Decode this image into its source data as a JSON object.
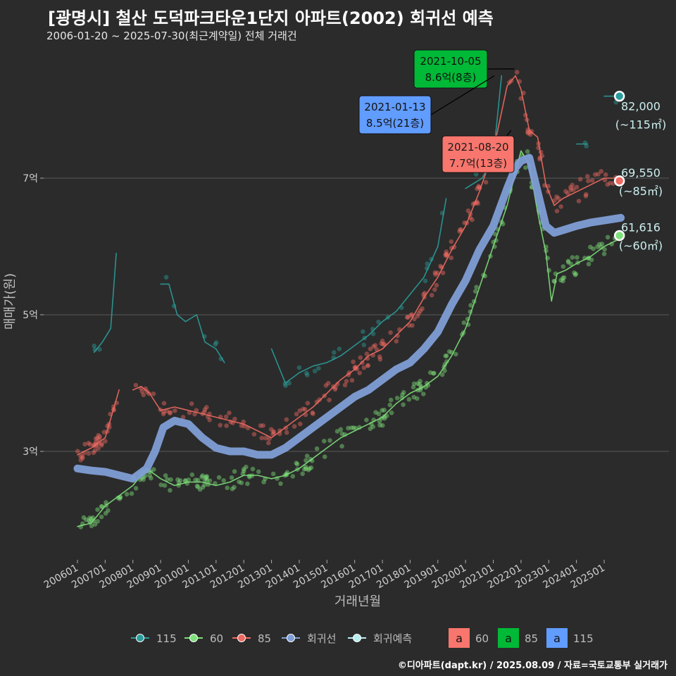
{
  "title": "[광명시] 철산 도덕파크타운1단지 아파트(2002) 회귀선 예측",
  "subtitle": "2006-01-20 ~ 2025-07-30(최근계약일) 전체 거래건",
  "credit": "©디아파트(dapt.kr) / 2025.08.09 / 자료=국토교통부 실거래가",
  "colors": {
    "background": "#2b2b2b",
    "area_115": "#2a9d9a",
    "area_60": "#7ee07a",
    "area_85": "#ef6a62",
    "regression": "#7f9ed6",
    "prediction": "#b8eef0",
    "label_60_box": "#f8766d",
    "label_85_box": "#00b936",
    "label_115_box": "#619cff"
  },
  "chart_data": {
    "type": "scatter",
    "xlabel": "거래년월",
    "ylabel": "매매가(원)",
    "x_ticks": [
      "200601",
      "200701",
      "200801",
      "200901",
      "201001",
      "201101",
      "201201",
      "201301",
      "201401",
      "201501",
      "201601",
      "201701",
      "201801",
      "201901",
      "202001",
      "202101",
      "202201",
      "202301",
      "202401",
      "202501"
    ],
    "y_ticks": [
      {
        "value": 3,
        "label": "3억"
      },
      {
        "value": 5,
        "label": "5억"
      },
      {
        "value": 7,
        "label": "7억"
      }
    ],
    "ylim": [
      1.5,
      9.2
    ],
    "xlim": [
      2005.8,
      2025.9
    ],
    "series": [
      {
        "name": "115",
        "line": [
          [
            2006.6,
            4.45
          ],
          [
            2006.9,
            4.6
          ],
          [
            2007.2,
            4.8
          ],
          [
            2007.4,
            5.9
          ],
          null,
          [
            2009.0,
            5.45
          ],
          [
            2009.3,
            5.45
          ],
          [
            2009.6,
            5.0
          ],
          [
            2009.9,
            4.9
          ],
          [
            2010.3,
            5.0
          ],
          [
            2010.6,
            4.6
          ],
          [
            2011.0,
            4.5
          ],
          [
            2011.3,
            4.3
          ],
          null,
          [
            2013.0,
            4.5
          ],
          [
            2013.5,
            4.0
          ],
          [
            2014.0,
            4.15
          ],
          [
            2014.5,
            4.25
          ],
          [
            2015.0,
            4.3
          ],
          [
            2015.5,
            4.4
          ],
          [
            2016.0,
            4.55
          ],
          [
            2016.5,
            4.7
          ],
          [
            2017.0,
            4.9
          ],
          [
            2017.5,
            5.05
          ],
          [
            2018.0,
            5.3
          ],
          [
            2018.5,
            5.55
          ],
          [
            2019.0,
            6.0
          ],
          [
            2019.3,
            6.7
          ],
          null,
          [
            2020.0,
            6.85
          ],
          [
            2020.6,
            7.0
          ],
          [
            2021.0,
            7.3
          ],
          [
            2021.3,
            8.5
          ],
          null,
          [
            2024.0,
            7.5
          ],
          [
            2024.4,
            7.5
          ],
          null,
          [
            2025.0,
            8.2
          ],
          [
            2025.5,
            8.2
          ]
        ]
      },
      {
        "name": "60",
        "line": [
          [
            2006.0,
            1.9
          ],
          [
            2006.5,
            1.95
          ],
          [
            2007.0,
            2.2
          ],
          [
            2007.5,
            2.35
          ],
          [
            2008.0,
            2.5
          ],
          [
            2008.5,
            2.75
          ],
          [
            2009.0,
            2.6
          ],
          [
            2009.5,
            2.5
          ],
          [
            2010.0,
            2.55
          ],
          [
            2010.5,
            2.55
          ],
          [
            2011.0,
            2.5
          ],
          [
            2011.5,
            2.55
          ],
          [
            2012.0,
            2.65
          ],
          [
            2012.5,
            2.65
          ],
          [
            2013.0,
            2.6
          ],
          [
            2013.5,
            2.65
          ],
          [
            2014.0,
            2.75
          ],
          [
            2014.5,
            2.9
          ],
          [
            2015.0,
            3.05
          ],
          [
            2015.5,
            3.2
          ],
          [
            2016.0,
            3.3
          ],
          [
            2016.5,
            3.4
          ],
          [
            2017.0,
            3.5
          ],
          [
            2017.5,
            3.7
          ],
          [
            2018.0,
            3.85
          ],
          [
            2018.5,
            3.95
          ],
          [
            2019.0,
            4.1
          ],
          [
            2019.5,
            4.4
          ],
          [
            2020.0,
            4.8
          ],
          [
            2020.5,
            5.4
          ],
          [
            2021.0,
            6.0
          ],
          [
            2021.5,
            6.6
          ],
          [
            2022.0,
            7.4
          ],
          [
            2022.3,
            7.2
          ],
          [
            2022.6,
            6.5
          ],
          [
            2022.9,
            5.9
          ],
          [
            2023.1,
            5.2
          ],
          [
            2023.3,
            5.6
          ],
          [
            2023.6,
            5.65
          ],
          [
            2024.0,
            5.75
          ],
          [
            2024.5,
            5.85
          ],
          [
            2025.0,
            6.0
          ],
          [
            2025.5,
            6.1
          ]
        ]
      },
      {
        "name": "85",
        "line": [
          [
            2006.0,
            2.95
          ],
          [
            2006.5,
            3.05
          ],
          [
            2007.0,
            3.2
          ],
          [
            2007.5,
            3.9
          ],
          null,
          [
            2008.0,
            3.9
          ],
          [
            2008.3,
            3.95
          ],
          [
            2008.6,
            3.85
          ],
          [
            2009.0,
            3.6
          ],
          [
            2009.5,
            3.65
          ],
          [
            2010.0,
            3.6
          ],
          [
            2010.5,
            3.55
          ],
          [
            2011.0,
            3.5
          ],
          [
            2011.5,
            3.45
          ],
          [
            2012.0,
            3.4
          ],
          [
            2012.5,
            3.3
          ],
          [
            2013.0,
            3.2
          ],
          [
            2013.5,
            3.35
          ],
          [
            2014.0,
            3.5
          ],
          [
            2014.5,
            3.65
          ],
          [
            2015.0,
            3.85
          ],
          [
            2015.5,
            4.05
          ],
          [
            2016.0,
            4.2
          ],
          [
            2016.5,
            4.4
          ],
          [
            2017.0,
            4.5
          ],
          [
            2017.5,
            4.7
          ],
          [
            2018.0,
            4.9
          ],
          [
            2018.5,
            5.25
          ],
          [
            2019.0,
            5.55
          ],
          [
            2019.5,
            5.95
          ],
          [
            2020.0,
            6.3
          ],
          [
            2020.5,
            6.8
          ],
          [
            2021.0,
            7.4
          ],
          [
            2021.5,
            8.35
          ],
          [
            2021.8,
            8.5
          ],
          [
            2022.0,
            8.3
          ],
          [
            2022.3,
            7.7
          ],
          [
            2022.6,
            7.6
          ],
          [
            2022.9,
            6.9
          ],
          [
            2023.2,
            6.6
          ],
          [
            2023.5,
            6.7
          ],
          [
            2024.0,
            6.8
          ],
          [
            2024.5,
            6.9
          ],
          [
            2025.0,
            7.0
          ],
          [
            2025.5,
            7.0
          ]
        ]
      },
      {
        "name": "회귀선",
        "line": [
          [
            2006.0,
            2.75
          ],
          [
            2006.5,
            2.72
          ],
          [
            2007.0,
            2.7
          ],
          [
            2007.5,
            2.65
          ],
          [
            2008.0,
            2.6
          ],
          [
            2008.5,
            2.75
          ],
          [
            2008.8,
            3.0
          ],
          [
            2009.1,
            3.35
          ],
          [
            2009.5,
            3.45
          ],
          [
            2010.0,
            3.4
          ],
          [
            2010.5,
            3.2
          ],
          [
            2011.0,
            3.05
          ],
          [
            2011.5,
            3.0
          ],
          [
            2012.0,
            3.0
          ],
          [
            2012.5,
            2.95
          ],
          [
            2013.0,
            2.95
          ],
          [
            2013.5,
            3.05
          ],
          [
            2014.0,
            3.2
          ],
          [
            2014.5,
            3.35
          ],
          [
            2015.0,
            3.5
          ],
          [
            2015.5,
            3.65
          ],
          [
            2016.0,
            3.8
          ],
          [
            2016.5,
            3.9
          ],
          [
            2017.0,
            4.05
          ],
          [
            2017.5,
            4.2
          ],
          [
            2018.0,
            4.3
          ],
          [
            2018.5,
            4.5
          ],
          [
            2019.0,
            4.75
          ],
          [
            2019.5,
            5.15
          ],
          [
            2020.0,
            5.5
          ],
          [
            2020.5,
            5.95
          ],
          [
            2021.0,
            6.3
          ],
          [
            2021.5,
            6.85
          ],
          [
            2021.8,
            7.15
          ],
          [
            2022.0,
            7.25
          ],
          [
            2022.3,
            7.3
          ],
          [
            2022.6,
            6.8
          ],
          [
            2022.9,
            6.3
          ],
          [
            2023.2,
            6.2
          ],
          [
            2023.6,
            6.25
          ],
          [
            2024.0,
            6.3
          ],
          [
            2024.5,
            6.35
          ],
          [
            2025.0,
            6.38
          ],
          [
            2025.6,
            6.42
          ]
        ]
      }
    ],
    "prediction": {
      "name": "회귀예측",
      "x": 2025.55
    },
    "end_labels": [
      {
        "area": "115",
        "value": 8.2,
        "price": "82,000",
        "size": "(~115㎡)"
      },
      {
        "area": "85",
        "value": 6.96,
        "price": "69,550",
        "size": "(~85㎡)"
      },
      {
        "area": "60",
        "value": 6.16,
        "price": "61,616",
        "size": "(~60㎡)"
      }
    ],
    "annotations": [
      {
        "area": "60",
        "date": "2021-08-20",
        "price": "7.7억(13층)",
        "x": 2021.64,
        "value": 7.7
      },
      {
        "area": "85",
        "date": "2021-10-05",
        "price": "8.6억(8층)",
        "x": 2021.76,
        "value": 8.6
      },
      {
        "area": "115",
        "date": "2021-01-13",
        "price": "8.5억(21층)",
        "x": 2021.04,
        "value": 8.5
      }
    ],
    "legend": {
      "lines": [
        {
          "key": "115",
          "label": "115"
        },
        {
          "key": "60",
          "label": "60"
        },
        {
          "key": "85",
          "label": "85"
        },
        {
          "key": "회귀선",
          "label": "회귀선"
        },
        {
          "key": "회귀예측",
          "label": "회귀예측"
        }
      ],
      "boxes": [
        {
          "glyph": "a",
          "label": "60",
          "color": "#f8766d"
        },
        {
          "glyph": "a",
          "label": "85",
          "color": "#00b936"
        },
        {
          "glyph": "a",
          "label": "115",
          "color": "#619cff"
        }
      ]
    }
  }
}
